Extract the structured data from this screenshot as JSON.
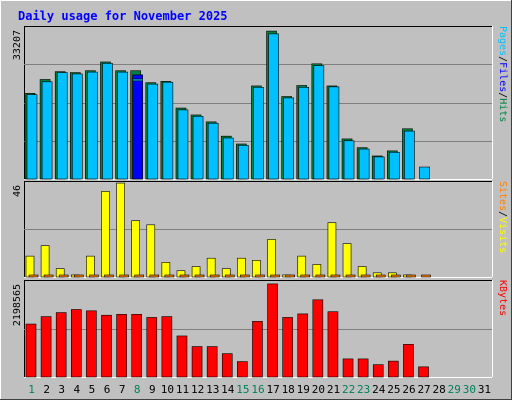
{
  "chart_data": [
    {
      "type": "bar",
      "title": "Daily usage for November 2025",
      "ylabel_parts": [
        "Pages",
        "/",
        "Files",
        "/",
        "Hits"
      ],
      "y_max_label": "33207",
      "ylim": [
        0,
        33207
      ],
      "categories": [
        "1",
        "2",
        "3",
        "4",
        "5",
        "6",
        "7",
        "8",
        "9",
        "10",
        "11",
        "12",
        "13",
        "14",
        "15",
        "16",
        "17",
        "18",
        "19",
        "20",
        "21",
        "22",
        "23",
        "24",
        "25",
        "26",
        "27",
        "28",
        "29",
        "30",
        "31"
      ],
      "series": [
        {
          "name": "Hits",
          "values": [
            18600,
            21600,
            23300,
            23100,
            23500,
            25400,
            23500,
            23500,
            20900,
            21200,
            15400,
            13900,
            12400,
            9300,
            7600,
            20200,
            32100,
            17900,
            20300,
            25000,
            20200,
            8700,
            6800,
            5000,
            6100,
            10900,
            0,
            0,
            0,
            0,
            0
          ]
        },
        {
          "name": "Files",
          "values": [
            18300,
            21100,
            23100,
            22800,
            23200,
            25100,
            23200,
            21700,
            20600,
            21000,
            15000,
            13600,
            12100,
            8900,
            7300,
            19900,
            31500,
            17600,
            19900,
            24600,
            20000,
            8300,
            6500,
            4800,
            5800,
            10400,
            2600,
            0,
            0,
            0,
            0
          ]
        },
        {
          "name": "Pages",
          "values": [
            0,
            0,
            0,
            0,
            0,
            0,
            0,
            22600,
            0,
            0,
            0,
            0,
            0,
            0,
            0,
            0,
            0,
            0,
            0,
            0,
            0,
            0,
            0,
            0,
            0,
            0,
            0,
            0,
            0,
            0,
            0
          ]
        }
      ],
      "colors": {
        "Hits": "#008040",
        "Files": "#0000ff",
        "Pages": "#00e0ff"
      }
    },
    {
      "type": "bar",
      "ylabel_parts": [
        "Sites",
        "/",
        "Visits"
      ],
      "y_max_label": "46",
      "ylim": [
        0,
        46
      ],
      "categories": [
        "1",
        "2",
        "3",
        "4",
        "5",
        "6",
        "7",
        "8",
        "9",
        "10",
        "11",
        "12",
        "13",
        "14",
        "15",
        "16",
        "17",
        "18",
        "19",
        "20",
        "21",
        "22",
        "23",
        "24",
        "25",
        "26",
        "27",
        "28",
        "29",
        "30",
        "31"
      ],
      "series": [
        {
          "name": "Visits",
          "values": [
            10,
            15,
            4,
            1,
            10,
            41,
            45,
            27,
            25,
            7,
            3,
            5,
            9,
            4,
            9,
            8,
            18,
            1,
            10,
            6,
            26,
            16,
            5,
            2,
            2,
            1,
            0,
            0,
            0,
            0,
            0
          ]
        },
        {
          "name": "Sites",
          "values": [
            1,
            1,
            1,
            1,
            1,
            1,
            1,
            1,
            1,
            1,
            1,
            1,
            1,
            1,
            1,
            1,
            1,
            1,
            1,
            1,
            1,
            1,
            1,
            1,
            1,
            1,
            1,
            0,
            0,
            0,
            0
          ]
        }
      ],
      "colors": {
        "Visits": "#ffff00",
        "Sites": "#ff8000"
      }
    },
    {
      "type": "bar",
      "ylabel_parts": [
        "KBytes"
      ],
      "y_max_label": "2198565",
      "ylim": [
        0,
        2198565
      ],
      "categories": [
        "1",
        "2",
        "3",
        "4",
        "5",
        "6",
        "7",
        "8",
        "9",
        "10",
        "11",
        "12",
        "13",
        "14",
        "15",
        "16",
        "17",
        "18",
        "19",
        "20",
        "21",
        "22",
        "23",
        "24",
        "25",
        "26",
        "27",
        "28",
        "29",
        "30",
        "31"
      ],
      "series": [
        {
          "name": "KBytes",
          "values": [
            1200000,
            1370000,
            1460000,
            1530000,
            1500000,
            1400000,
            1420000,
            1420000,
            1350000,
            1370000,
            930000,
            690000,
            690000,
            530000,
            350000,
            1260000,
            2110000,
            1350000,
            1430000,
            1750000,
            1480000,
            410000,
            410000,
            280000,
            360000,
            740000,
            230000,
            0,
            0,
            0,
            0
          ]
        }
      ],
      "colors": {
        "KBytes": "#ff0000"
      }
    }
  ],
  "x_labels": [
    "1",
    "2",
    "3",
    "4",
    "5",
    "6",
    "7",
    "8",
    "9",
    "10",
    "11",
    "12",
    "13",
    "14",
    "15",
    "16",
    "17",
    "18",
    "19",
    "20",
    "21",
    "22",
    "23",
    "24",
    "25",
    "26",
    "27",
    "28",
    "29",
    "30",
    "31"
  ],
  "weekend_days": [
    1,
    8,
    15,
    16,
    22,
    23,
    29,
    30
  ],
  "colors": {
    "background": "#c0c0c0",
    "title": "#0000ff",
    "axis_label_weekday": "#000000",
    "axis_label_weekend": "#00805c"
  }
}
